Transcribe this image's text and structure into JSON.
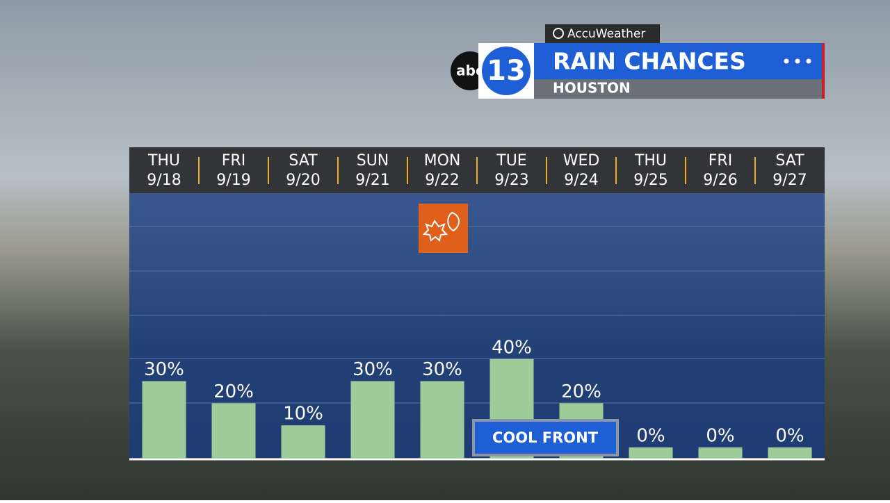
{
  "branding": {
    "logo_small": "abc",
    "logo_number": "13",
    "partner": "AccuWeather"
  },
  "chart_data": {
    "type": "bar",
    "title": "RAIN CHANCES",
    "subtitle": "HOUSTON",
    "weekdays": [
      "THU",
      "FRI",
      "SAT",
      "SUN",
      "MON",
      "TUE",
      "WED",
      "THU",
      "FRI",
      "SAT"
    ],
    "categories": [
      "9/18",
      "9/19",
      "9/20",
      "9/21",
      "9/22",
      "9/23",
      "9/24",
      "9/25",
      "9/26",
      "9/27"
    ],
    "values": [
      30,
      20,
      10,
      30,
      30,
      40,
      20,
      0,
      0,
      0
    ],
    "value_labels": [
      "30%",
      "20%",
      "10%",
      "30%",
      "30%",
      "40%",
      "20%",
      "0%",
      "0%",
      "0%"
    ],
    "color": "#9dcc98",
    "ylim": [
      0,
      100
    ],
    "annotations": [
      "COOL FRONT"
    ]
  }
}
